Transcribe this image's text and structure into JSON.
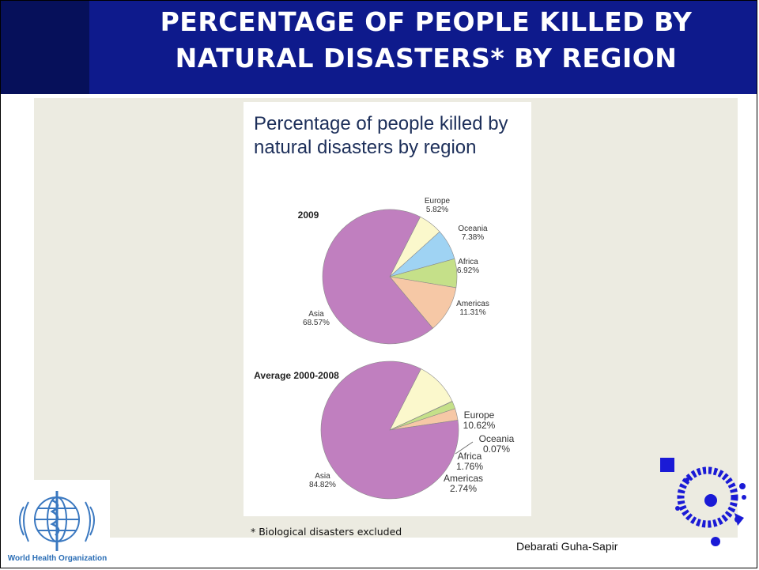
{
  "slide": {
    "title_lines": [
      "PERCENTAGE OF PEOPLE KILLED BY",
      "NATURAL DISASTERS* BY REGION"
    ],
    "footnote": "* Biological disasters excluded",
    "author": "Debarati Guha-Sapir",
    "who_label": "World Health Organization"
  },
  "colors": {
    "header": "#0e1a8c",
    "asia": "#c07fbf",
    "americas": "#f6c8a6",
    "africa": "#c5e089",
    "oceania": "#9fd3f3",
    "europe": "#fbf8cc"
  },
  "icons": [
    "who-emblem-icon",
    "cred-logo-icon"
  ],
  "chart_data": [
    {
      "type": "pie",
      "title": "Percentage of people killed by natural disasters by region",
      "subtitle": "2009",
      "labels": [
        "Europe",
        "Oceania",
        "Africa",
        "Americas",
        "Asia"
      ],
      "values": [
        5.82,
        7.38,
        6.92,
        11.31,
        68.57
      ],
      "value_labels": [
        "5.82%",
        "7.38%",
        "6.92%",
        "11.31%",
        "68.57%"
      ],
      "colors": [
        "#fbf8cc",
        "#9fd3f3",
        "#c5e089",
        "#f6c8a6",
        "#c07fbf"
      ]
    },
    {
      "type": "pie",
      "subtitle": "Average 2000-2008",
      "labels": [
        "Europe",
        "Oceania",
        "Africa",
        "Americas",
        "Asia"
      ],
      "values": [
        10.62,
        0.07,
        1.76,
        2.74,
        84.82
      ],
      "value_labels": [
        "10.62%",
        "0.07%",
        "1.76%",
        "2.74%",
        "84.82%"
      ],
      "colors": [
        "#fbf8cc",
        "#9fd3f3",
        "#c5e089",
        "#f6c8a6",
        "#c07fbf"
      ]
    }
  ]
}
